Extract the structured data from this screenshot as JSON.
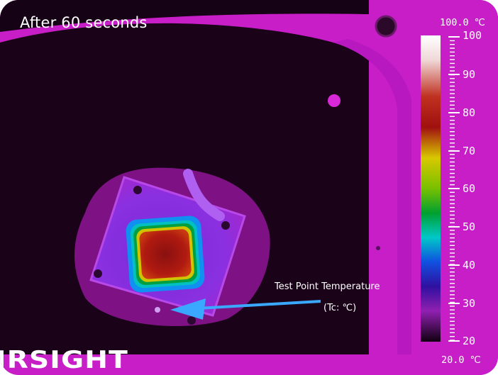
{
  "caption": "After 60 seconds",
  "annotation": {
    "line1": "Test Point Temperature",
    "line2": "(Tc: ℃)"
  },
  "brand_text": "IRSIGHT",
  "scale": {
    "top_label": "100.0 ℃",
    "bottom_label": "20.0 ℃",
    "ticks": [
      "100",
      "90",
      "80",
      "70",
      "60",
      "50",
      "40",
      "30",
      "20"
    ]
  },
  "colors": {
    "background_magenta": "#c81ec8",
    "cool_plate": "#1a0318",
    "arrow": "#3aa8ff"
  }
}
